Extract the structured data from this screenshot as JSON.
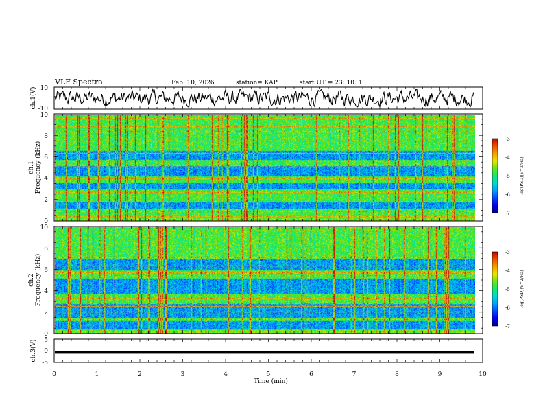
{
  "header": {
    "title": "VLF Spectra",
    "date": "Feb. 10, 2026",
    "station": "station= KAP",
    "start": "start  UT  =   23: 10: 1"
  },
  "chart_data": [
    {
      "type": "line",
      "id": "ch1_waveform",
      "ylabel": "ch.1(V)",
      "ylim": [
        -10,
        10
      ],
      "yticks": [
        10,
        -10
      ],
      "xlim": [
        0,
        10
      ],
      "description_series": "dense oscillating waveform, approx amplitude 5 V",
      "amplitude_est": 5
    },
    {
      "type": "heatmap",
      "id": "ch1_spectrogram",
      "ylabel_top": "ch.1",
      "ylabel": "Frequency (kHz)",
      "ylim": [
        0,
        10
      ],
      "yticks": [
        0,
        2,
        4,
        6,
        8,
        10
      ],
      "xlim": [
        0,
        9.8
      ],
      "quiet_bands_khz": [
        [
          4.2,
          5.2
        ],
        [
          3.0,
          3.6
        ],
        [
          1.2,
          1.8
        ],
        [
          5.8,
          6.6
        ]
      ],
      "colorbar": {
        "label": "log(PSD)(V^2/Hz)",
        "min": -7,
        "max": -3,
        "ticks": [
          -3,
          -4,
          -5,
          -6,
          -7
        ]
      }
    },
    {
      "type": "heatmap",
      "id": "ch2_spectrogram",
      "ylabel_top": "ch.2",
      "ylabel": "Frequency (kHz)",
      "ylim": [
        0,
        10
      ],
      "yticks": [
        0,
        2,
        4,
        6,
        8,
        10
      ],
      "xlim": [
        0,
        9.8
      ],
      "quiet_bands_khz": [
        [
          3.8,
          5.2
        ],
        [
          1.5,
          2.8
        ],
        [
          0.4,
          1.2
        ],
        [
          6.0,
          7.0
        ]
      ],
      "colorbar": {
        "label": "log(PSD)(V^2/Hz)",
        "min": -7,
        "max": -3,
        "ticks": [
          -3,
          -4,
          -5,
          -6,
          -7
        ]
      }
    },
    {
      "type": "line",
      "id": "ch3_waveform",
      "ylabel": "ch.3(V)",
      "ylim": [
        -5,
        5
      ],
      "yticks": [
        5,
        0,
        -5
      ],
      "xlim": [
        0,
        10
      ],
      "level_v": -0.7,
      "thickness_v": 1.2
    }
  ],
  "xaxis": {
    "label": "Time (min)",
    "ticks": [
      "0",
      "1",
      "2",
      "3",
      "4",
      "5",
      "6",
      "7",
      "8",
      "9",
      "10"
    ]
  },
  "colors": {
    "line": "#000000",
    "frame": "#000000"
  }
}
